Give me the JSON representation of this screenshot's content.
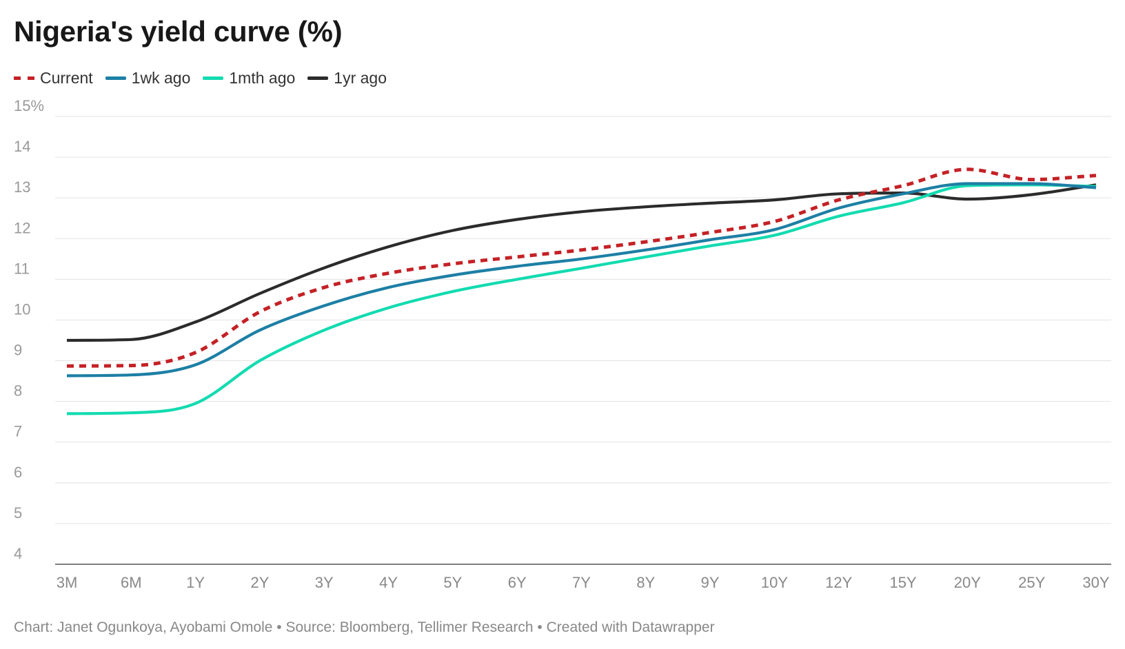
{
  "title": "Nigeria's yield curve (%)",
  "source_line": "Chart: Janet Ogunkoya, Ayobami Omole • Source: Bloomberg, Tellimer Research • Created with Datawrapper",
  "chart_data": {
    "type": "line",
    "title": "Nigeria's yield curve (%)",
    "xlabel": "",
    "ylabel": "",
    "categories": [
      "3M",
      "6M",
      "1Y",
      "2Y",
      "3Y",
      "4Y",
      "5Y",
      "6Y",
      "7Y",
      "8Y",
      "9Y",
      "10Y",
      "12Y",
      "15Y",
      "20Y",
      "25Y",
      "30Y"
    ],
    "y_ticks": [
      "15%",
      "14",
      "13",
      "12",
      "11",
      "10",
      "9",
      "8",
      "7",
      "6",
      "5",
      "4"
    ],
    "ylim": [
      4,
      15
    ],
    "grid": true,
    "legend_position": "top-left",
    "series": [
      {
        "name": "Current",
        "color": "#c42126",
        "style": "dashed",
        "values": [
          8.87,
          8.88,
          9.2,
          10.2,
          10.8,
          11.15,
          11.38,
          11.55,
          11.72,
          11.92,
          12.15,
          12.42,
          12.95,
          13.3,
          13.7,
          13.45,
          13.55
        ]
      },
      {
        "name": "1wk ago",
        "color": "#1d7fa5",
        "style": "solid",
        "values": [
          8.63,
          8.65,
          8.9,
          9.75,
          10.35,
          10.8,
          11.1,
          11.32,
          11.5,
          11.72,
          11.97,
          12.22,
          12.75,
          13.1,
          13.35,
          13.35,
          13.25
        ]
      },
      {
        "name": "1mth ago",
        "color": "#13dbb0",
        "style": "solid",
        "values": [
          7.7,
          7.72,
          7.95,
          9.0,
          9.75,
          10.3,
          10.7,
          11.0,
          11.27,
          11.55,
          11.82,
          12.08,
          12.55,
          12.88,
          13.3,
          13.32,
          13.28
        ]
      },
      {
        "name": "1yr ago",
        "color": "#2b2b2b",
        "style": "solid",
        "values": [
          9.5,
          9.52,
          9.95,
          10.65,
          11.28,
          11.8,
          12.2,
          12.47,
          12.66,
          12.78,
          12.87,
          12.95,
          13.1,
          13.12,
          12.97,
          13.08,
          13.32
        ]
      }
    ]
  }
}
